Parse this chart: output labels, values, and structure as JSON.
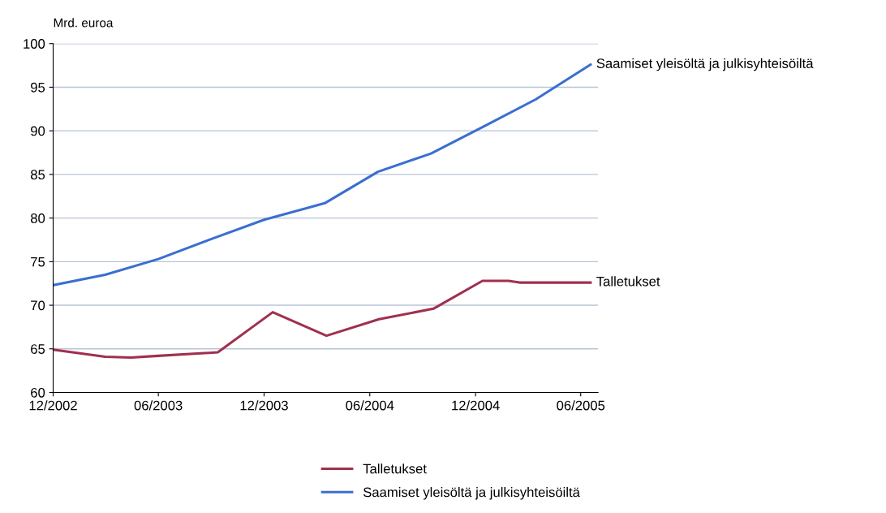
{
  "chart_data": {
    "type": "line",
    "ylabel": "Mrd. euroa",
    "xlim": [
      "2002-12-01",
      "2005-07-01"
    ],
    "ylim": [
      60,
      100
    ],
    "yticks": [
      60,
      65,
      70,
      75,
      80,
      85,
      90,
      95,
      100
    ],
    "xticks": [
      {
        "value": "2002-12-01",
        "label": "12/2002"
      },
      {
        "value": "2003-06-01",
        "label": "06/2003"
      },
      {
        "value": "2003-12-01",
        "label": "12/2003"
      },
      {
        "value": "2004-06-01",
        "label": "06/2004"
      },
      {
        "value": "2004-12-01",
        "label": "12/2004"
      },
      {
        "value": "2005-06-01",
        "label": "06/2005"
      }
    ],
    "grid": "y",
    "legend": "bottom",
    "marker": "none",
    "line_style": "solid",
    "series": [
      {
        "name": "Talletukset",
        "color": "#a0304f",
        "x": [
          "2002-12-01",
          "2003-03-01",
          "2003-04-15",
          "2003-06-01",
          "2003-09-12",
          "2003-12-16",
          "2004-03-18",
          "2004-06-17",
          "2004-09-19",
          "2004-12-13",
          "2005-01-27",
          "2005-02-15",
          "2005-06-18"
        ],
        "values": [
          64.9,
          64.1,
          64.0,
          64.2,
          64.6,
          69.2,
          66.5,
          68.4,
          69.6,
          72.8,
          72.8,
          72.6,
          72.6
        ]
      },
      {
        "name": "Saamiset yleisöltä ja julkisyhteisöiltä",
        "color": "#3a6fd0",
        "x": [
          "2002-12-01",
          "2003-03-01",
          "2003-06-01",
          "2003-09-01",
          "2003-12-01",
          "2004-03-15",
          "2004-06-15",
          "2004-09-15",
          "2004-12-15",
          "2005-03-15",
          "2005-06-18"
        ],
        "values": [
          72.3,
          73.5,
          75.3,
          77.6,
          79.8,
          81.7,
          85.3,
          87.4,
          90.5,
          93.6,
          97.6
        ]
      }
    ]
  }
}
